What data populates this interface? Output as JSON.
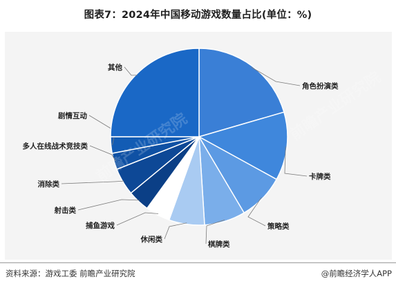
{
  "title": "图表7：2024年中国移动游戏数量占比(单位：%)",
  "chart_data": {
    "type": "pie",
    "title": "图表7：2024年中国移动游戏数量占比(单位：%)",
    "slices": [
      {
        "label": "角色扮演类",
        "value": 20.5,
        "color": "#3a7fd6"
      },
      {
        "label": "卡牌类",
        "value": 12.5,
        "color": "#3f87dc"
      },
      {
        "label": "策略类",
        "value": 8.5,
        "color": "#5c9ae3"
      },
      {
        "label": "棋牌类",
        "value": 7.5,
        "color": "#7aaeea"
      },
      {
        "label": "休闲类",
        "value": 6.5,
        "color": "#a9cbf2"
      },
      {
        "label": "捕鱼游戏",
        "value": 4.5,
        "color": "#ffffff"
      },
      {
        "label": "射击类",
        "value": 4.0,
        "color": "#0b3f86"
      },
      {
        "label": "消除类",
        "value": 5.0,
        "color": "#0d4896"
      },
      {
        "label": "多人在线战术竞技类",
        "value": 3.0,
        "color": "#0f51a4"
      },
      {
        "label": "剧情互动",
        "value": 3.0,
        "color": "#135cb4"
      },
      {
        "label": "其他",
        "value": 25.0,
        "color": "#1a68c6"
      }
    ],
    "legend": "none (leader-line labels)"
  },
  "footer": {
    "source": "资料来源：游戏工委 前瞻产业研究院",
    "brand": "@前瞻经济学人APP"
  },
  "watermark_text": "前瞻产业研究院"
}
